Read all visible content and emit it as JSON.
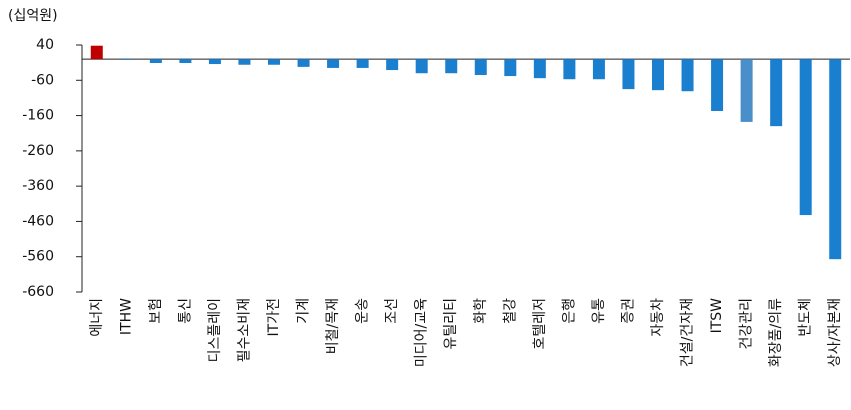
{
  "chart_data": {
    "type": "bar",
    "unit_label": "(십억원)",
    "categories": [
      "에너지",
      "ITHW",
      "보험",
      "통신",
      "디스플레이",
      "필수소비재",
      "IT가전",
      "기계",
      "비철/목재",
      "운송",
      "조선",
      "미디어/교육",
      "유틸리티",
      "화학",
      "철강",
      "호텔레저",
      "은행",
      "유통",
      "증권",
      "자동차",
      "건설/건자재",
      "ITSW",
      "건강관리",
      "화장품/의류",
      "반도체",
      "상사/자본재"
    ],
    "values": [
      38,
      -2,
      -11,
      -11,
      -14,
      -16,
      -16,
      -22,
      -25,
      -25,
      -31,
      -40,
      -40,
      -45,
      -48,
      -54,
      -57,
      -57,
      -85,
      -88,
      -91,
      -147,
      -178,
      -190,
      -442,
      -567
    ],
    "colors": [
      "#c00000",
      "#1b7fd0",
      "#1b7fd0",
      "#1b7fd0",
      "#1b7fd0",
      "#1b7fd0",
      "#1b7fd0",
      "#1b7fd0",
      "#1b7fd0",
      "#1b7fd0",
      "#1b7fd0",
      "#1b7fd0",
      "#1b7fd0",
      "#1b7fd0",
      "#1b7fd0",
      "#1b7fd0",
      "#1b7fd0",
      "#1b7fd0",
      "#1b7fd0",
      "#1b7fd0",
      "#1b7fd0",
      "#1b7fd0",
      "#4a8fc9",
      "#1b7fd0",
      "#1b7fd0",
      "#1b7fd0"
    ],
    "ylim": [
      -660,
      40
    ],
    "yticks": [
      40,
      -60,
      -160,
      -260,
      -360,
      -460,
      -560,
      -660
    ]
  }
}
